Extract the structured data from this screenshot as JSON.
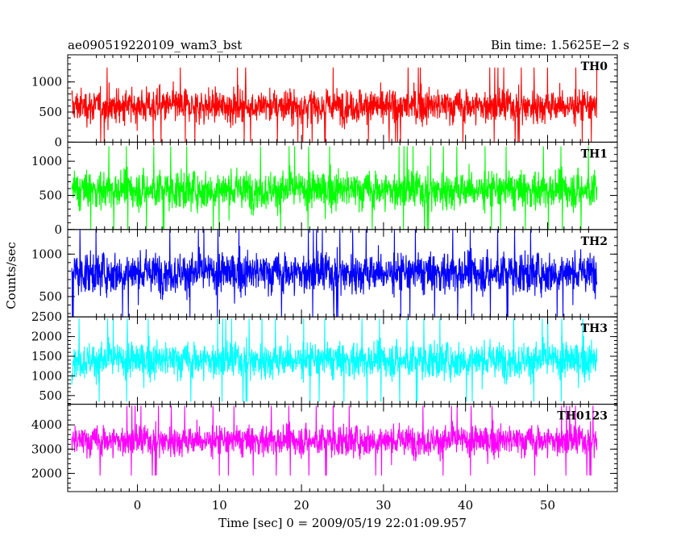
{
  "chart_data": {
    "type": "line",
    "title": "ae090519220109_wam3_bst",
    "subtitle": "Bin time: 1.5625E−2 s",
    "xlabel": "Time [sec] 0 = 2009/05/19 22:01:09.957",
    "ylabel": "Counts/sec",
    "xlim": [
      -8.5,
      58.5
    ],
    "x_range": [
      -8.0,
      56.0
    ],
    "x_ticks": [
      0,
      10,
      20,
      30,
      40,
      50
    ],
    "x_tick_labels": [
      "0",
      "10",
      "20",
      "30",
      "40",
      "50"
    ],
    "grid": false,
    "panels": [
      {
        "label": "TH0",
        "color": "#ff0000",
        "ylim": [
          0,
          1450
        ],
        "y_ticks": [
          0,
          500,
          1000
        ],
        "y_tick_labels": [
          "0",
          "500",
          "1000"
        ],
        "mean": 600,
        "spread": 200,
        "min": 0,
        "max": 1450
      },
      {
        "label": "TH1",
        "color": "#00ff00",
        "ylim": [
          0,
          1280
        ],
        "y_ticks": [
          0,
          500,
          1000
        ],
        "y_tick_labels": [
          "0",
          "500",
          "1000"
        ],
        "mean": 580,
        "spread": 200,
        "min": 0,
        "max": 1280
      },
      {
        "label": "TH2",
        "color": "#0000ff",
        "ylim": [
          260,
          1290
        ],
        "y_ticks": [
          500,
          1000
        ],
        "y_tick_labels": [
          "500",
          "1000"
        ],
        "mean": 780,
        "spread": 170,
        "min": 260,
        "max": 1290
      },
      {
        "label": "TH3",
        "color": "#00ffff",
        "ylim": [
          280,
          2500
        ],
        "y_ticks": [
          500,
          1000,
          1500,
          2000,
          2500
        ],
        "y_tick_labels": [
          "500",
          "1000",
          "1500",
          "2000",
          "2500"
        ],
        "mean": 1400,
        "spread": 330,
        "min": 280,
        "max": 2500
      },
      {
        "label": "TH0123",
        "color": "#ff00ff",
        "ylim": [
          1250,
          4850
        ],
        "y_ticks": [
          2000,
          3000,
          4000
        ],
        "y_tick_labels": [
          "2000",
          "3000",
          "4000"
        ],
        "mean": 3350,
        "spread": 450,
        "min": 1250,
        "max": 4850
      }
    ]
  }
}
